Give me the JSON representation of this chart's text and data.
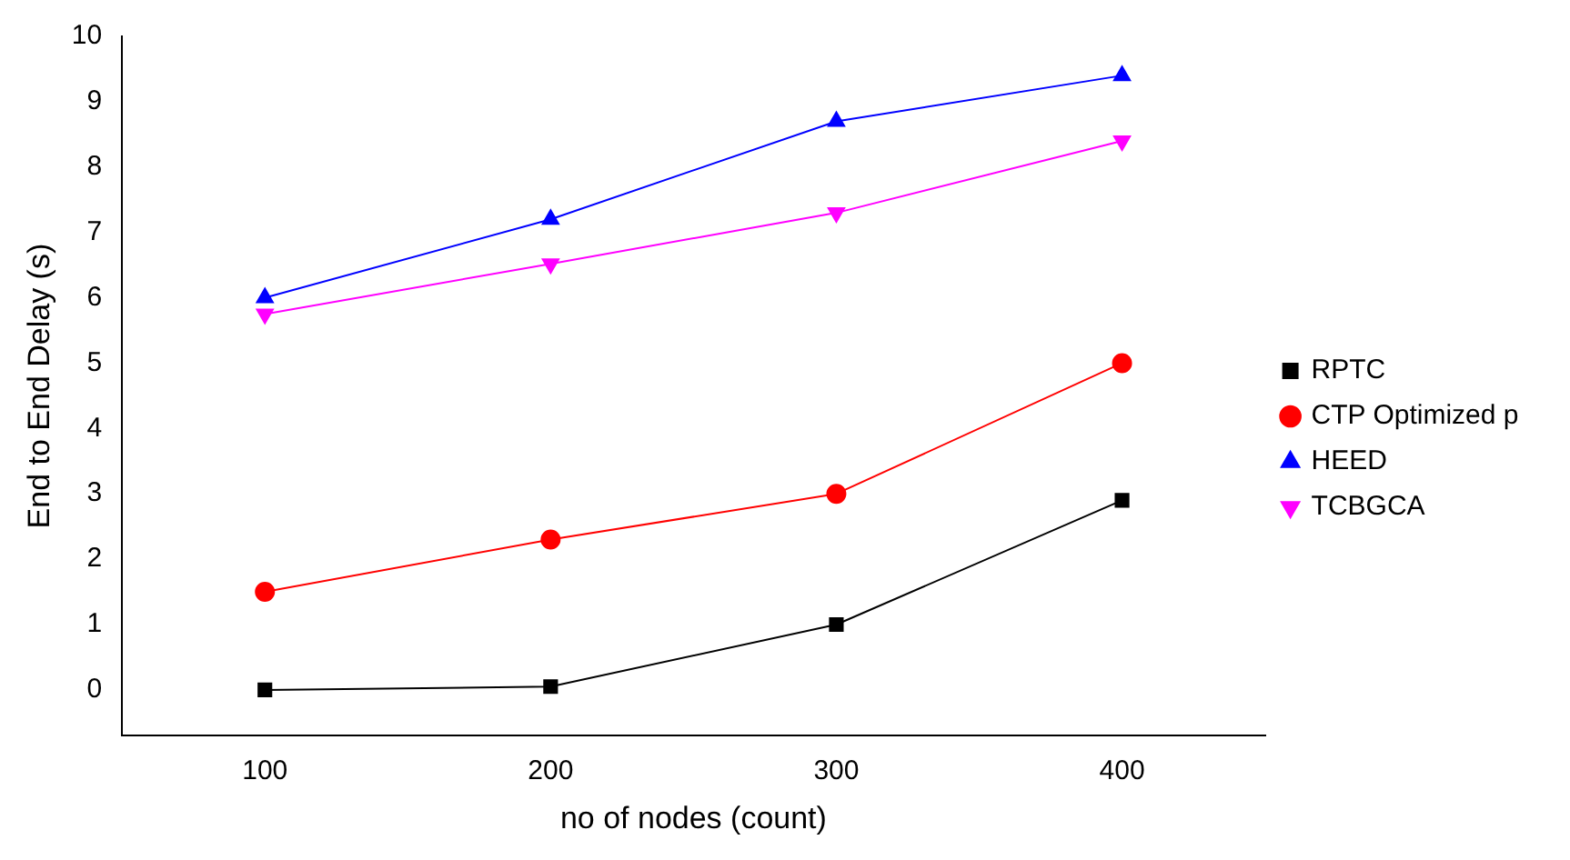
{
  "chart_data": {
    "type": "line",
    "xlabel": "no of nodes (count)",
    "ylabel": "End to End Delay (s)",
    "x": [
      100,
      200,
      300,
      400
    ],
    "series": [
      {
        "name": "RPTC",
        "color": "#000000",
        "marker": "square",
        "values": [
          0,
          0.05,
          1,
          2.9
        ]
      },
      {
        "name": "CTP Optimized p",
        "color": "#ff0000",
        "marker": "circle",
        "values": [
          1.5,
          2.3,
          3,
          5
        ]
      },
      {
        "name": "HEED",
        "color": "#0000ff",
        "marker": "triangle",
        "values": [
          6,
          7.2,
          8.7,
          9.4
        ]
      },
      {
        "name": "TCBGCA",
        "color": "#ff00ff",
        "marker": "triangle-down",
        "values": [
          5.75,
          6.52,
          7.3,
          8.4
        ]
      }
    ],
    "xlim": [
      50,
      450
    ],
    "xticks": [
      100,
      200,
      300,
      400
    ],
    "ylim": [
      -0.7,
      10
    ],
    "yticks": [
      0,
      1,
      2,
      3,
      4,
      5,
      6,
      7,
      8,
      9,
      10
    ],
    "grid": false,
    "legend": "right"
  }
}
